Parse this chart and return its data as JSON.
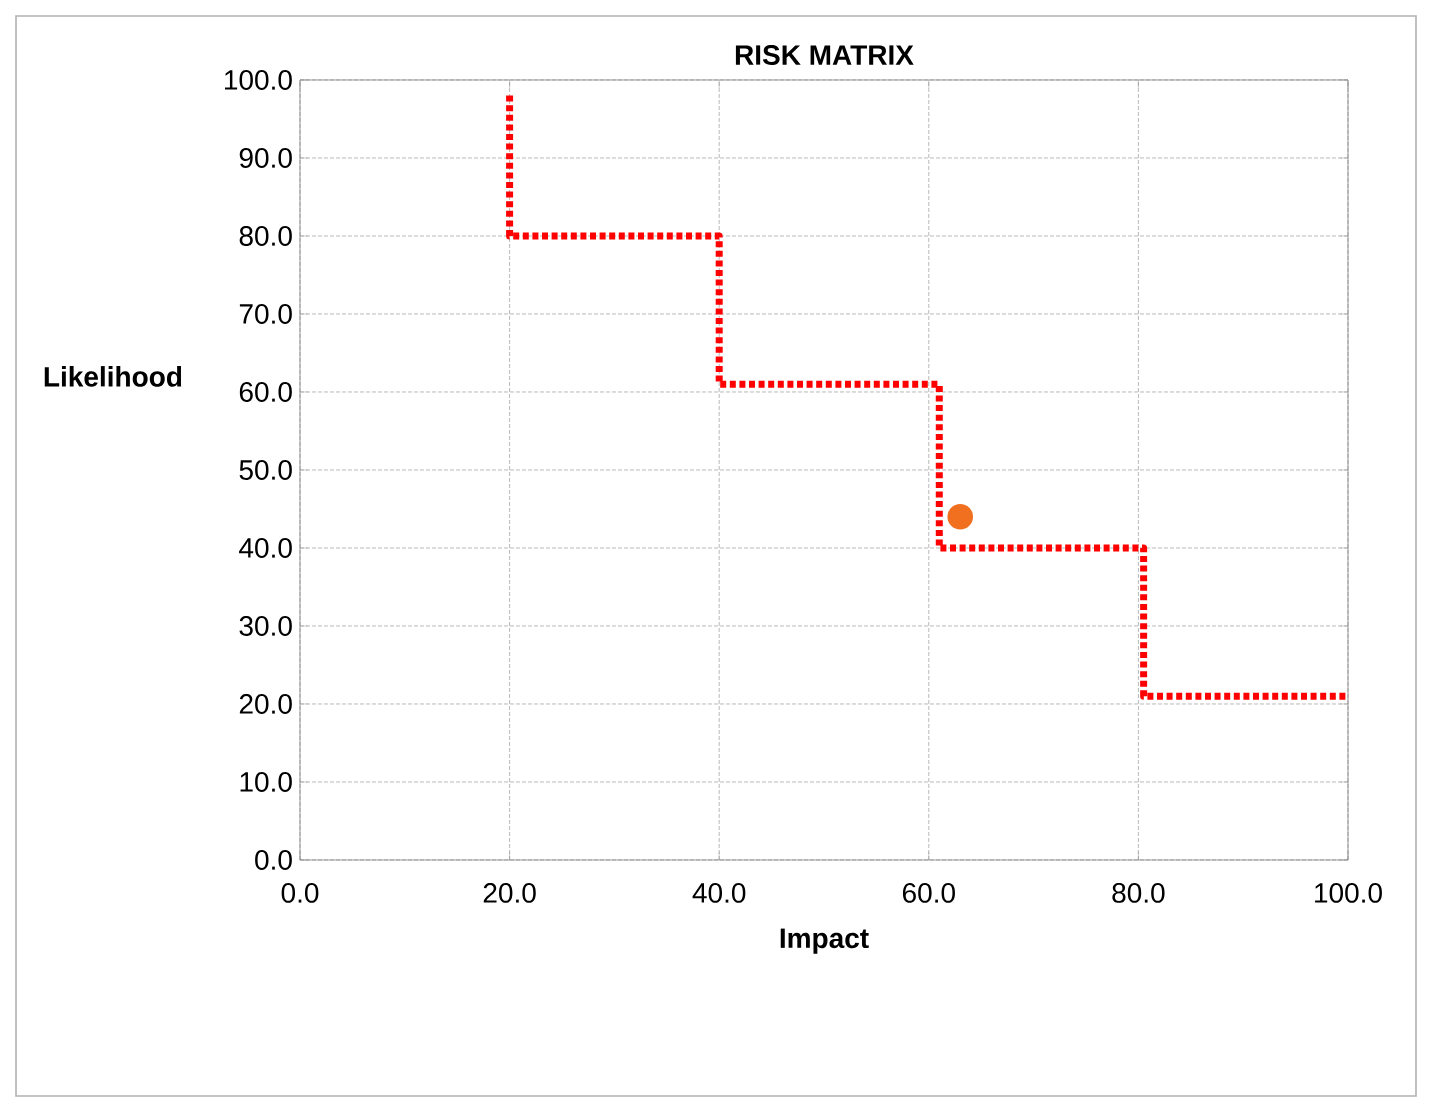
{
  "chart_data": {
    "type": "line",
    "title": "RISK MATRIX",
    "xlabel": "Impact",
    "ylabel": "Likelihood",
    "xlim": [
      0,
      100
    ],
    "ylim": [
      0,
      100
    ],
    "xticks": [
      {
        "value": 0,
        "label": "0.0"
      },
      {
        "value": 20,
        "label": "20.0"
      },
      {
        "value": 40,
        "label": "40.0"
      },
      {
        "value": 60,
        "label": "60.0"
      },
      {
        "value": 80,
        "label": "80.0"
      },
      {
        "value": 100,
        "label": "100.0"
      }
    ],
    "yticks": [
      {
        "value": 0,
        "label": "0.0"
      },
      {
        "value": 10,
        "label": "10.0"
      },
      {
        "value": 20,
        "label": "20.0"
      },
      {
        "value": 30,
        "label": "30.0"
      },
      {
        "value": 40,
        "label": "40.0"
      },
      {
        "value": 50,
        "label": "50.0"
      },
      {
        "value": 60,
        "label": "60.0"
      },
      {
        "value": 70,
        "label": "70.0"
      },
      {
        "value": 80,
        "label": "80.0"
      },
      {
        "value": 90,
        "label": "90.0"
      },
      {
        "value": 100,
        "label": "100.0"
      }
    ],
    "grid": true,
    "series": [
      {
        "color": "#ff0000",
        "line_style": "dotted",
        "marker": "none",
        "x": [
          20,
          20,
          40,
          40,
          61,
          61,
          80.5,
          80.5,
          100
        ],
        "values": [
          98,
          80,
          80,
          61,
          61,
          40,
          40,
          21,
          21
        ]
      },
      {
        "type": "scatter",
        "color": "#f07020",
        "marker": "circle",
        "x": [
          63
        ],
        "values": [
          44
        ]
      }
    ]
  }
}
